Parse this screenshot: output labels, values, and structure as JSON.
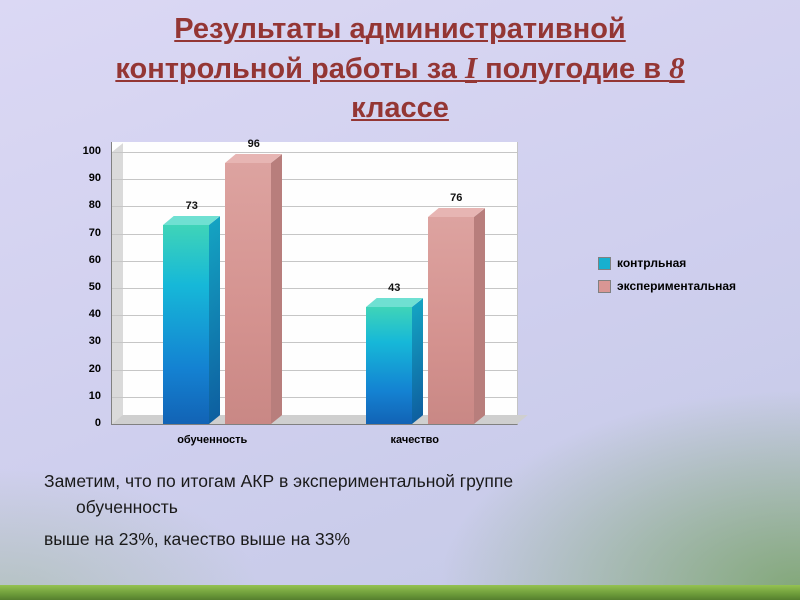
{
  "title": {
    "lines": [
      [
        {
          "t": "Результаты административной",
          "serif": false
        }
      ],
      [
        {
          "t": "контрольной работы за ",
          "serif": false
        },
        {
          "t": "I",
          "serif": true
        },
        {
          "t": " полугодие в ",
          "serif": false
        },
        {
          "t": "8",
          "serif": true
        }
      ],
      [
        {
          "t": "классе",
          "serif": false
        }
      ]
    ],
    "color": "#943634"
  },
  "chart_data": {
    "type": "bar",
    "categories": [
      "обученность",
      "качество"
    ],
    "series": [
      {
        "name": "контрльная",
        "values": [
          73,
          43
        ],
        "color": "#17b0cf"
      },
      {
        "name": "экспериментальная",
        "values": [
          96,
          76
        ],
        "color": "#d99694"
      }
    ],
    "title": "",
    "xlabel": "",
    "ylabel": "",
    "ylim": [
      0,
      100
    ],
    "ytick_step": 10,
    "grid": true,
    "legend_position": "right",
    "effect": "3d"
  },
  "note": {
    "lines": [
      {
        "text": "Заметим, что по итогам АКР в экспериментальной группе"
      },
      {
        "text": "обученность"
      },
      {
        "text": "выше на 23%, качество выше на 33%"
      }
    ]
  },
  "colors": {
    "title": "#943634",
    "series1": "#17b0cf",
    "series2": "#d99694",
    "bottom_bar": "#6d9c3a"
  }
}
